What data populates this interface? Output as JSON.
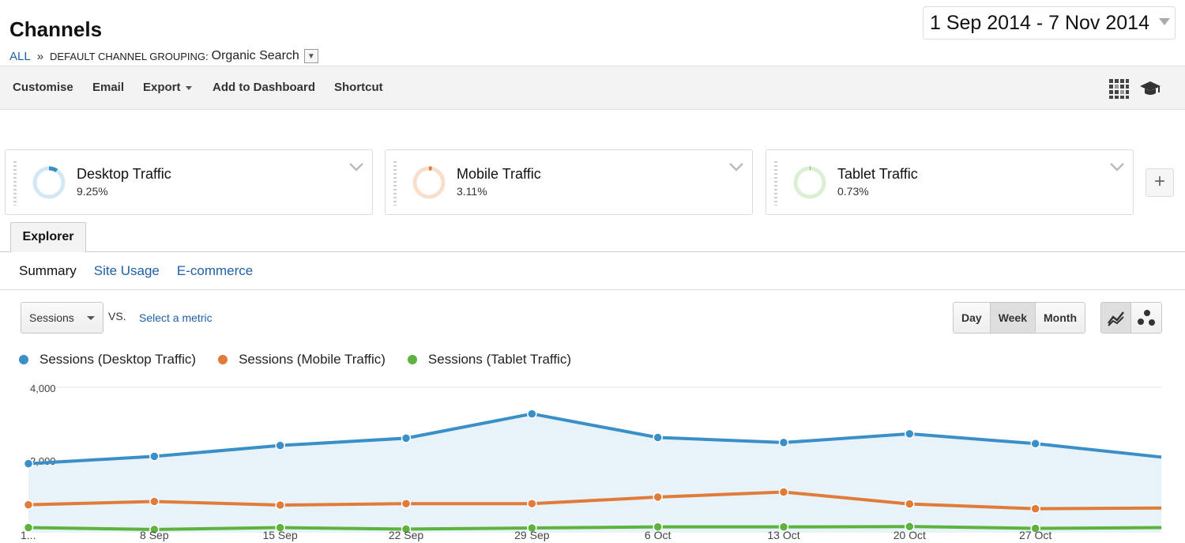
{
  "header": {
    "title": "Channels",
    "breadcrumb": {
      "all": "ALL",
      "separator": "»",
      "label": "DEFAULT CHANNEL GROUPING:",
      "value": "Organic Search"
    },
    "date_range": "1 Sep 2014 - 7 Nov 2014"
  },
  "toolbar": {
    "customise": "Customise",
    "email": "Email",
    "export": "Export",
    "add_to_dashboard": "Add to Dashboard",
    "shortcut": "Shortcut",
    "icons": [
      "grid-icon",
      "graduation-cap-icon"
    ]
  },
  "segments": [
    {
      "name": "Desktop Traffic",
      "percent": "9.25%",
      "fraction": 0.0925,
      "color": "#3a8fc9"
    },
    {
      "name": "Mobile Traffic",
      "percent": "3.11%",
      "fraction": 0.0311,
      "color": "#e07b39"
    },
    {
      "name": "Tablet Traffic",
      "percent": "0.73%",
      "fraction": 0.0073,
      "color": "#5db33e"
    }
  ],
  "add_segment": "+",
  "explorer": {
    "tab": "Explorer",
    "subtabs": {
      "summary": "Summary",
      "site_usage": "Site Usage",
      "ecommerce": "E-commerce"
    }
  },
  "controls": {
    "metric": "Sessions",
    "vs": "VS.",
    "select_metric": "Select a metric",
    "periods": {
      "day": "Day",
      "week": "Week",
      "month": "Month"
    },
    "active_period": "Week"
  },
  "chart_data": {
    "type": "line",
    "x": [
      "1...",
      "8 Sep",
      "15 Sep",
      "22 Sep",
      "29 Sep",
      "6 Oct",
      "13 Oct",
      "20 Oct",
      "27 Oct",
      ""
    ],
    "y_ticks": [
      "4,000",
      "2,000"
    ],
    "ylim": [
      0,
      4000
    ],
    "grid": true,
    "legend_position": "top-left",
    "series": [
      {
        "name": "Sessions (Desktop Traffic)",
        "color": "#3a8fc9",
        "fill": true,
        "values": [
          1900,
          2100,
          2400,
          2600,
          3270,
          2620,
          2480,
          2720,
          2450,
          2080
        ]
      },
      {
        "name": "Sessions (Mobile Traffic)",
        "color": "#e07b39",
        "fill": false,
        "values": [
          770,
          860,
          760,
          800,
          800,
          980,
          1120,
          790,
          660,
          680
        ]
      },
      {
        "name": "Sessions (Tablet Traffic)",
        "color": "#5db33e",
        "fill": false,
        "values": [
          140,
          90,
          140,
          100,
          130,
          160,
          160,
          170,
          120,
          140
        ]
      }
    ]
  }
}
